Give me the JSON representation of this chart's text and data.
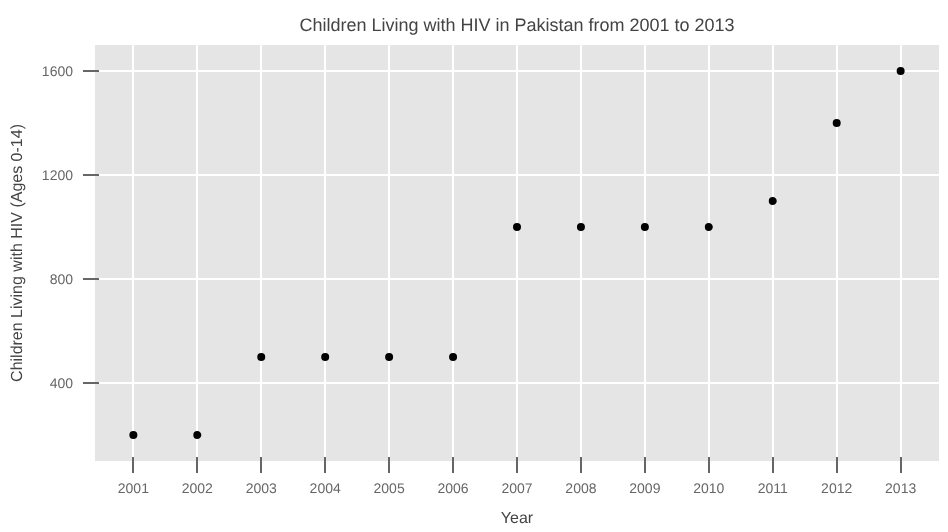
{
  "chart_data": {
    "type": "scatter",
    "title": "Children Living with HIV in Pakistan from 2001 to 2013",
    "xlabel": "Year",
    "ylabel": "Children Living with HIV (Ages 0-14)",
    "x": [
      2001,
      2002,
      2003,
      2004,
      2005,
      2006,
      2007,
      2008,
      2009,
      2010,
      2011,
      2012,
      2013
    ],
    "values": [
      200,
      200,
      500,
      500,
      500,
      500,
      1000,
      1000,
      1000,
      1000,
      1100,
      1400,
      1600
    ],
    "color": "#000000",
    "marker": "circle",
    "xlim": [
      2000.4,
      2013.6
    ],
    "xticks": [
      2001,
      2002,
      2003,
      2004,
      2005,
      2006,
      2007,
      2008,
      2009,
      2010,
      2011,
      2012,
      2013
    ],
    "ylim": [
      100,
      1700
    ],
    "yticks": [
      400,
      800,
      1200,
      1600
    ],
    "grid": true
  }
}
